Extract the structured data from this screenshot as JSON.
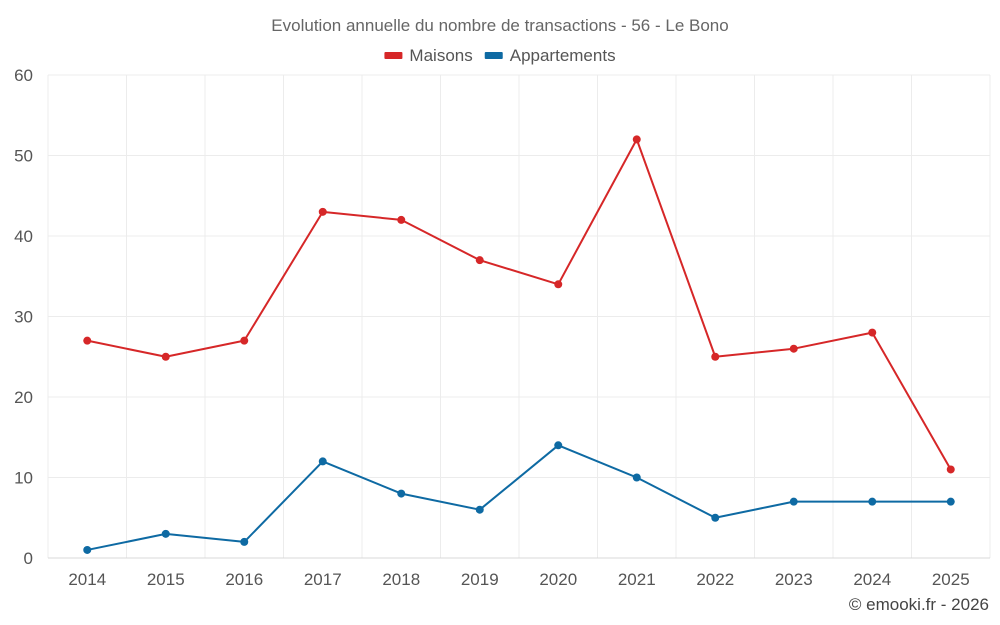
{
  "chart_data": {
    "type": "line",
    "title": "Evolution annuelle du nombre de transactions - 56 - Le Bono",
    "xlabel": "",
    "ylabel": "",
    "categories": [
      "2014",
      "2015",
      "2016",
      "2017",
      "2018",
      "2019",
      "2020",
      "2021",
      "2022",
      "2023",
      "2024",
      "2025"
    ],
    "ylim": [
      0,
      60
    ],
    "yticks": [
      0,
      10,
      20,
      30,
      40,
      50,
      60
    ],
    "grid": true,
    "legend_position": "top-center",
    "series": [
      {
        "name": "Maisons",
        "color": "#d62728",
        "values": [
          27,
          25,
          27,
          43,
          42,
          37,
          34,
          52,
          25,
          26,
          28,
          11
        ]
      },
      {
        "name": "Appartements",
        "color": "#0e6aa3",
        "values": [
          1,
          3,
          2,
          12,
          8,
          6,
          14,
          10,
          5,
          7,
          7,
          7
        ]
      }
    ]
  },
  "credit": "© emooki.fr - 2026"
}
